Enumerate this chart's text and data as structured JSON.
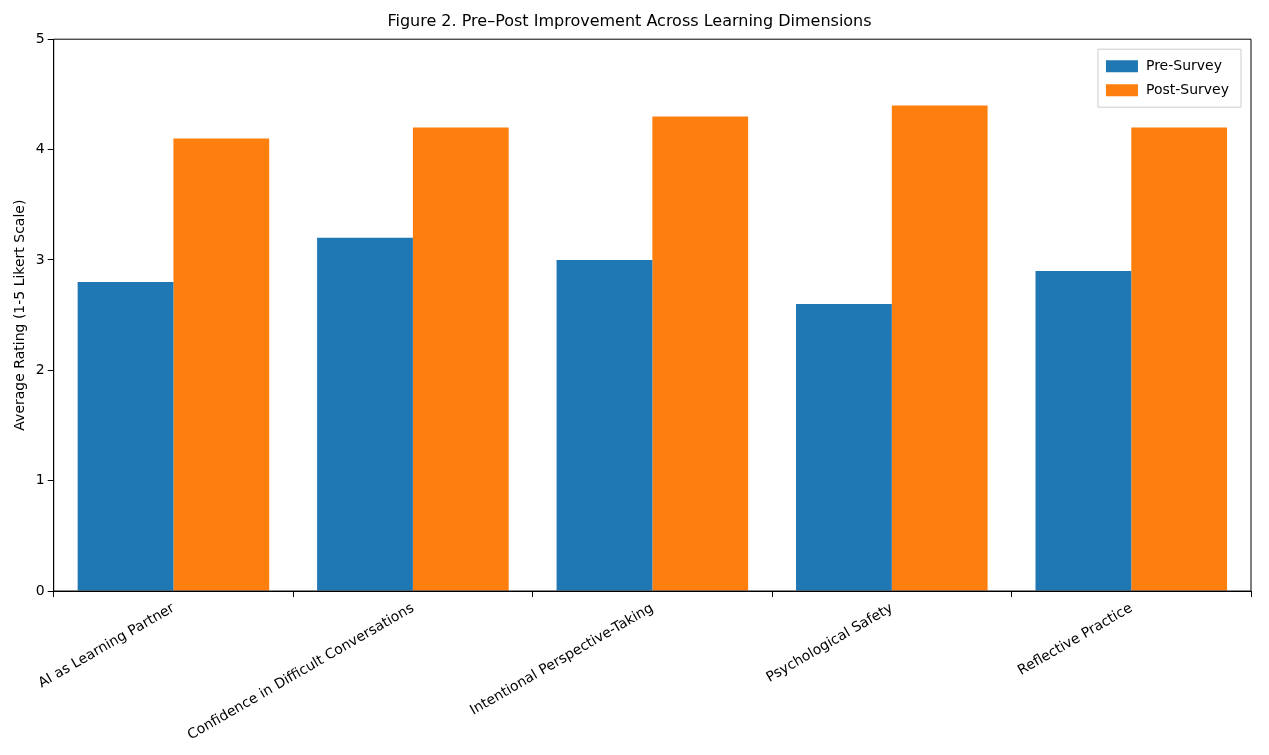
{
  "chart_data": {
    "type": "bar",
    "title": "Figure 2. Pre–Post Improvement Across Learning Dimensions",
    "ylabel": "Average Rating (1-5 Likert Scale)",
    "categories": [
      "AI as Learning Partner",
      "Confidence in Difficult Conversations",
      "Intentional Perspective-Taking",
      "Psychological Safety",
      "Reflective Practice"
    ],
    "series": [
      {
        "name": "Pre-Survey",
        "color": "#1f77b4",
        "values": [
          2.8,
          3.2,
          3.0,
          2.6,
          2.9
        ]
      },
      {
        "name": "Post-Survey",
        "color": "#ff7f0e",
        "values": [
          4.1,
          4.2,
          4.3,
          4.4,
          4.2
        ]
      }
    ],
    "ylim": [
      0,
      5
    ],
    "yticks": [
      0,
      1,
      2,
      3,
      4,
      5
    ],
    "grid": false,
    "legend": "top right"
  }
}
